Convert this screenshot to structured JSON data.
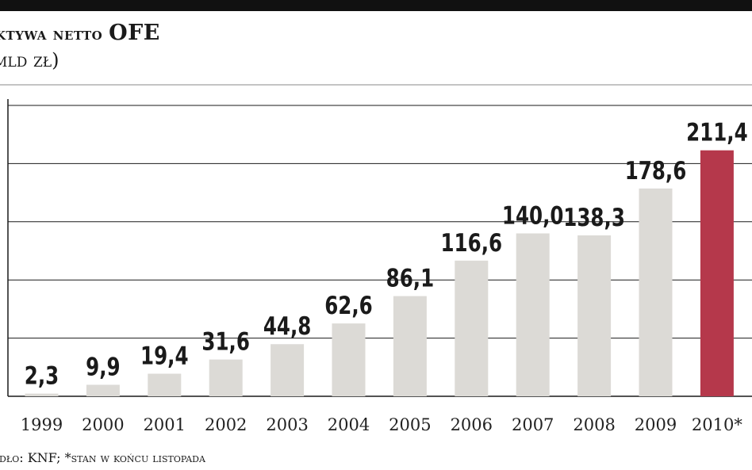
{
  "header": {
    "title_start": "ktywa netto ",
    "title_end": "OFE",
    "subtitle": "mld zł)"
  },
  "footer": {
    "source": "ódło: KNF; *stan w końcu listopada"
  },
  "colors": {
    "bar": "#dcdad6",
    "highlight": "#b5384b",
    "grid": "#1a1a1a",
    "text": "#1a1a1a"
  },
  "chart_data": {
    "type": "bar",
    "categories": [
      "1999",
      "2000",
      "2001",
      "2002",
      "2003",
      "2004",
      "2005",
      "2006",
      "2007",
      "2008",
      "2009",
      "2010*"
    ],
    "values": [
      2.3,
      9.9,
      19.4,
      31.6,
      44.8,
      62.6,
      86.1,
      116.6,
      140.0,
      138.3,
      178.6,
      211.4
    ],
    "value_labels": [
      "2,3",
      "9,9",
      "19,4",
      "31,6",
      "44,8",
      "62,6",
      "86,1",
      "116,6",
      "140,0",
      "138,3",
      "178,6",
      "211,4"
    ],
    "highlight_index": 11,
    "ylim": [
      0,
      250
    ],
    "grid": true,
    "gridline_values": [
      0,
      50,
      100,
      150,
      200,
      250
    ]
  }
}
